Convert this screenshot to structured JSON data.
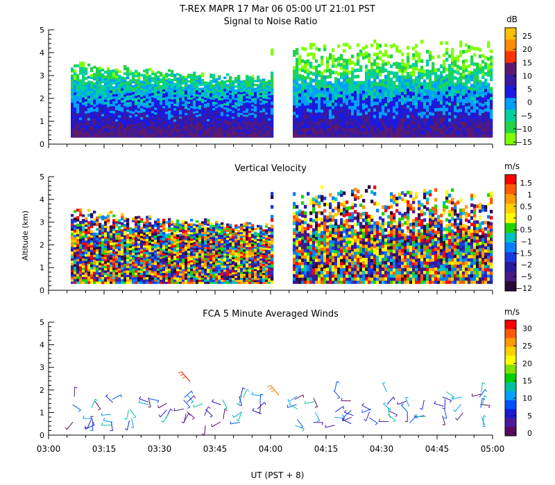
{
  "header": {
    "title": "T-REX   MAPR 17 Mar 06   05:00 UT   21:01   PST",
    "xlabel": "UT  (PST + 8)",
    "ylabel": "Altitude (km)"
  },
  "chart_data": [
    {
      "type": "heatmap",
      "title": "Signal to Noise Ratio",
      "units": "dB",
      "ylim": [
        0,
        5
      ],
      "yticks": [
        "0",
        "1",
        "2",
        "3",
        "4",
        "5"
      ],
      "colorbar_labels": [
        "25",
        "20",
        "15",
        "10",
        "5",
        "0",
        "−5",
        "−10",
        "−15"
      ],
      "colorbar_colors": [
        "#fdbf00",
        "#ff8c00",
        "#ff3300",
        "#5a1a6e",
        "#3a1aa0",
        "#1a1ae0",
        "#00a0ff",
        "#00d0a0",
        "#22d44a",
        "#80ff00"
      ],
      "data_gap": [
        "04:00",
        "04:05"
      ]
    },
    {
      "type": "heatmap",
      "title": "Vertical Velocity",
      "units": "m/s",
      "ylim": [
        0,
        5
      ],
      "yticks": [
        "0",
        "1",
        "2",
        "3",
        "4",
        "5"
      ],
      "colorbar_labels": [
        "1.5",
        "1",
        "0.5",
        "0",
        "−0.5",
        "−1",
        "−1.5",
        "−2",
        "−5",
        "−12"
      ],
      "colorbar_colors": [
        "#ff0000",
        "#ff5a00",
        "#ff9a00",
        "#ffd000",
        "#ffff00",
        "#22d400",
        "#00c0c0",
        "#0080ff",
        "#1a3ae0",
        "#2a1aa0",
        "#4a1a80",
        "#2a0a3a"
      ],
      "data_gap": [
        "04:00",
        "04:05"
      ]
    },
    {
      "type": "scatter",
      "title": "FCA 5 Minute Averaged Winds",
      "units": "m/s",
      "ylim": [
        0,
        5
      ],
      "yticks": [
        "0",
        "1",
        "2",
        "3",
        "4",
        "5"
      ],
      "colorbar_labels": [
        "30",
        "25",
        "20",
        "15",
        "10",
        "5",
        "0"
      ],
      "colorbar_colors": [
        "#ff0000",
        "#ff5a00",
        "#ff9a00",
        "#ffd000",
        "#ffff00",
        "#80e000",
        "#00d000",
        "#00c0a0",
        "#00a0ff",
        "#0050ff",
        "#1a1ad0",
        "#4a1a9a",
        "#5a0a5a"
      ],
      "xticks": [
        "03:00",
        "03:15",
        "03:30",
        "03:45",
        "04:00",
        "04:15",
        "04:30",
        "04:45",
        "05:00"
      ]
    }
  ]
}
